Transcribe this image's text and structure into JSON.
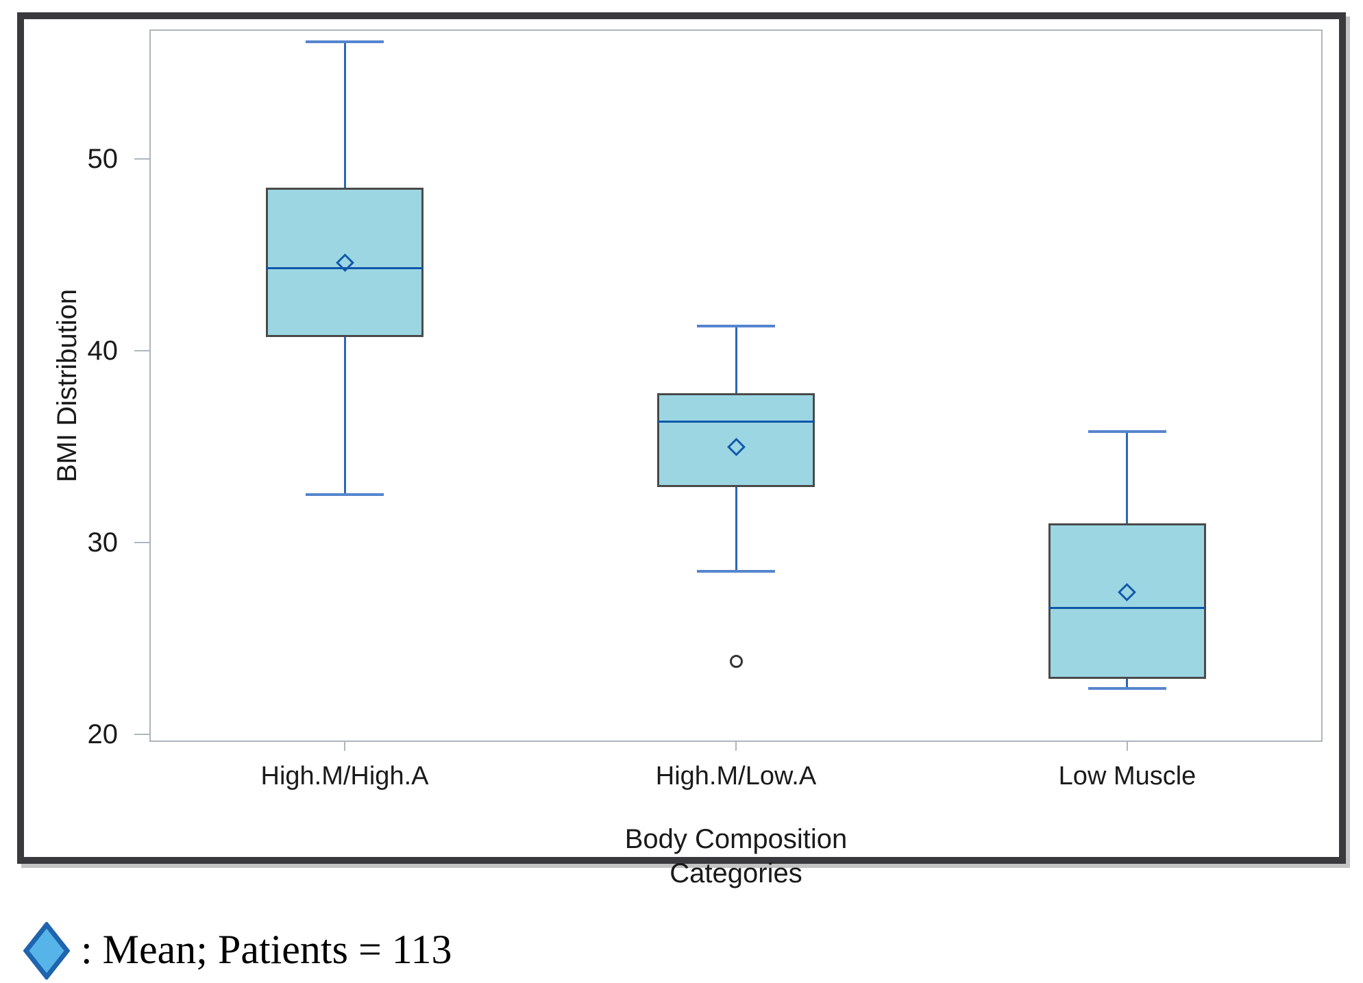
{
  "chart_data": {
    "type": "boxplot",
    "xlabel": "Body Composition Categories",
    "ylabel": "BMI Distribution",
    "categories": [
      "High.M/High.A",
      "High.M/Low.A",
      "Low Muscle"
    ],
    "y_axis": {
      "ticks": [
        50,
        40,
        30,
        20
      ],
      "ylim": [
        19.6,
        56.8
      ]
    },
    "grid": false,
    "legend_position": "below-left",
    "series": [
      {
        "category": "High.M/High.A",
        "whisker_low": 32.5,
        "q1": 40.7,
        "median": 44.3,
        "mean": 44.6,
        "q3": 48.5,
        "whisker_high": 56.1,
        "outliers": []
      },
      {
        "category": "High.M/Low.A",
        "whisker_low": 28.5,
        "q1": 32.9,
        "median": 36.3,
        "mean": 35.0,
        "q3": 37.8,
        "whisker_high": 41.3,
        "outliers": [
          23.8
        ]
      },
      {
        "category": "Low Muscle",
        "whisker_low": 22.4,
        "q1": 22.9,
        "median": 26.6,
        "mean": 27.4,
        "q3": 31.0,
        "whisker_high": 35.8,
        "outliers": []
      }
    ]
  },
  "legend": {
    "marker": "mean-diamond-icon",
    "text": ": Mean; Patients = 113",
    "patients": 113
  },
  "colors": {
    "box_fill": "#9CD6E3",
    "box_border": "#4A4A4A",
    "median": "#0E56A7",
    "whisker": "#2E64B9",
    "whisker_cap": "#5585CE",
    "mean_marker": "#1159A9",
    "outlier": "#333333",
    "axis_border": "#AEB6BC",
    "frame": "#3A3A3E",
    "legend_diamond_fill": "#56B4E9",
    "legend_diamond_stroke": "#1E64AE",
    "text": "#1A1A1A"
  }
}
